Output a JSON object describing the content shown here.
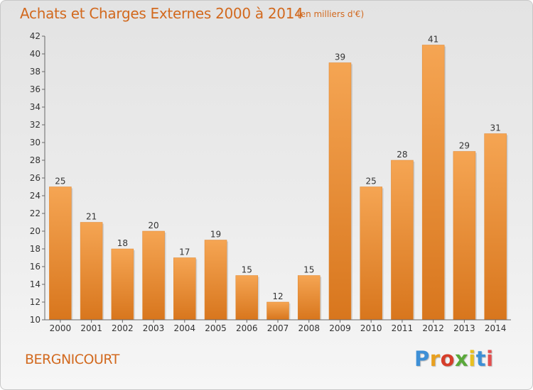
{
  "header": {
    "title": "Achats et Charges Externes 2000 à 2014",
    "subtitle": "(en milliers d'€)"
  },
  "footer": {
    "commune": "BERGNICOURT",
    "logo_letters": [
      "P",
      "r",
      "o",
      "x",
      "i",
      "t",
      "i"
    ],
    "logo_colors": [
      "#3d8fd6",
      "#e8a020",
      "#d63e2a",
      "#5aa83a",
      "#e8c020",
      "#3d8fd6",
      "#e35050"
    ]
  },
  "chart_data": {
    "type": "bar",
    "title": "Achats et Charges Externes 2000 à 2014",
    "subtitle": "(en milliers d'€)",
    "xlabel": "",
    "ylabel": "",
    "categories": [
      "2000",
      "2001",
      "2002",
      "2003",
      "2004",
      "2005",
      "2006",
      "2007",
      "2008",
      "2009",
      "2010",
      "2011",
      "2012",
      "2013",
      "2014"
    ],
    "values": [
      25,
      21,
      18,
      20,
      17,
      19,
      15,
      12,
      15,
      39,
      25,
      28,
      41,
      29,
      31
    ],
    "ylim": [
      10,
      42
    ],
    "yticks": [
      10,
      12,
      14,
      16,
      18,
      20,
      22,
      24,
      26,
      28,
      30,
      32,
      34,
      36,
      38,
      40,
      42
    ],
    "grid": false,
    "legend": "none",
    "bar_color_top": "#f5a553",
    "bar_color_bottom": "#d8761d",
    "label_color": "#333333",
    "axis_color": "#666666"
  }
}
